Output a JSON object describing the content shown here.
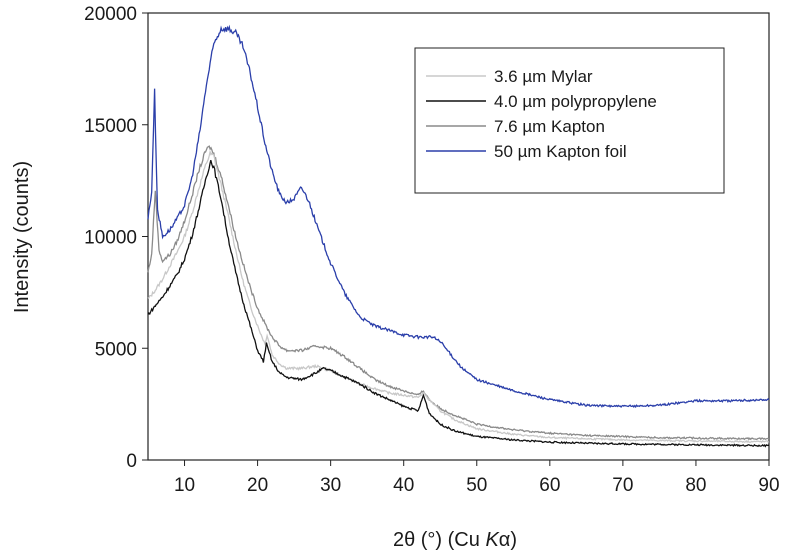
{
  "chart_data": {
    "type": "line",
    "xlabel_parts": [
      "2θ (°) (Cu ",
      "K",
      "α)"
    ],
    "ylabel": "Intensity (counts)",
    "xlim": [
      5,
      90
    ],
    "ylim": [
      0,
      20000
    ],
    "xticks": [
      "10",
      "20",
      "30",
      "40",
      "50",
      "60",
      "70",
      "80",
      "90"
    ],
    "yticks": [
      "0",
      "5000",
      "10000",
      "15000",
      "20000"
    ],
    "grid": false,
    "legend_position": "top-right",
    "series": [
      {
        "name": "3.6 µm Mylar",
        "color": "#c8c8c8",
        "x": [
          5,
          6,
          7,
          8,
          9,
          10,
          11,
          12,
          13,
          13.5,
          14,
          15,
          16,
          17,
          18,
          19,
          20,
          21,
          21.3,
          22,
          23,
          24,
          26,
          28,
          30,
          32,
          34,
          36,
          38,
          40,
          42,
          42.7,
          43.5,
          45,
          47,
          50,
          55,
          60,
          65,
          70,
          75,
          80,
          85,
          90
        ],
        "y": [
          7200,
          7600,
          8100,
          8700,
          9300,
          10000,
          11000,
          12200,
          13300,
          13700,
          13600,
          12300,
          10900,
          9400,
          8000,
          6900,
          6000,
          5200,
          5600,
          4700,
          4300,
          4100,
          4100,
          4200,
          4000,
          3700,
          3400,
          3200,
          3000,
          2900,
          2800,
          3000,
          2700,
          2200,
          1800,
          1400,
          1150,
          1000,
          950,
          900,
          870,
          850,
          830,
          820
        ]
      },
      {
        "name": "4.0 µm polypropylene",
        "color": "#111111",
        "x": [
          5,
          6,
          7,
          8,
          9,
          10,
          11,
          12,
          13,
          13.6,
          14,
          15,
          16,
          17,
          18,
          19,
          20,
          20.8,
          21.2,
          22,
          23,
          24,
          26,
          28,
          29,
          30,
          32,
          34,
          36,
          38,
          40,
          42,
          42.7,
          43.5,
          45,
          47,
          50,
          55,
          60,
          65,
          70,
          75,
          80,
          85,
          90
        ],
        "y": [
          6500,
          6900,
          7300,
          7800,
          8300,
          9000,
          10000,
          11300,
          12700,
          13400,
          13100,
          11700,
          9900,
          8400,
          7100,
          6000,
          4900,
          4400,
          5200,
          4400,
          3900,
          3700,
          3600,
          3900,
          4100,
          4000,
          3700,
          3400,
          3000,
          2700,
          2400,
          2200,
          2900,
          2100,
          1600,
          1300,
          1050,
          900,
          800,
          750,
          720,
          700,
          680,
          660,
          640
        ]
      },
      {
        "name": "7.6 µm Kapton",
        "color": "#8a8a8a",
        "x": [
          5,
          5.5,
          6,
          6.5,
          7,
          8,
          9,
          10,
          11,
          12,
          13,
          13.5,
          14,
          15,
          16,
          17,
          18,
          19,
          20,
          21,
          22,
          23,
          24,
          26,
          28,
          30,
          32,
          34,
          36,
          38,
          40,
          42,
          42.7,
          43.5,
          45,
          47,
          50,
          55,
          60,
          65,
          70,
          75,
          80,
          85,
          90
        ],
        "y": [
          8400,
          9200,
          12100,
          9400,
          8900,
          9200,
          9800,
          10700,
          11800,
          13000,
          13900,
          14000,
          13700,
          12700,
          11400,
          10000,
          8800,
          7700,
          6800,
          6100,
          5500,
          5100,
          4900,
          4900,
          5100,
          5000,
          4600,
          4100,
          3600,
          3300,
          3100,
          2900,
          3100,
          2700,
          2300,
          2000,
          1600,
          1350,
          1200,
          1100,
          1050,
          1000,
          980,
          960,
          950
        ]
      },
      {
        "name": "50 µm Kapton foil",
        "color": "#2b3faa",
        "x": [
          5,
          5.5,
          5.9,
          6.3,
          7,
          8,
          9,
          10,
          11,
          12,
          13,
          14,
          15,
          16,
          17,
          18,
          19,
          20,
          21,
          22,
          23,
          24,
          25,
          26,
          27,
          28,
          30,
          32,
          34,
          36,
          38,
          40,
          42,
          44,
          45,
          46,
          48,
          50,
          55,
          60,
          65,
          70,
          75,
          80,
          85,
          90
        ],
        "y": [
          10800,
          12000,
          16500,
          11200,
          10000,
          10300,
          10800,
          11400,
          12600,
          14500,
          16800,
          18600,
          19300,
          19300,
          19100,
          18500,
          17300,
          15800,
          14200,
          12900,
          11900,
          11500,
          11700,
          12200,
          11600,
          10600,
          8800,
          7400,
          6400,
          6000,
          5800,
          5600,
          5500,
          5500,
          5300,
          4900,
          4100,
          3600,
          3100,
          2700,
          2450,
          2400,
          2450,
          2650,
          2650,
          2700
        ]
      }
    ]
  }
}
